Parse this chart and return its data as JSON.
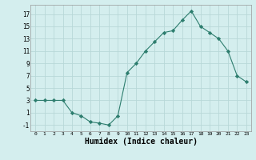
{
  "x": [
    0,
    1,
    2,
    3,
    4,
    5,
    6,
    7,
    8,
    9,
    10,
    11,
    12,
    13,
    14,
    15,
    16,
    17,
    18,
    19,
    20,
    21,
    22,
    23
  ],
  "y": [
    3,
    3,
    3,
    3,
    1,
    0.5,
    -0.5,
    -0.7,
    -1,
    0.5,
    7.5,
    9,
    11,
    12.5,
    14,
    14.3,
    16,
    17.5,
    15,
    14,
    13,
    11,
    7,
    6
  ],
  "line_color": "#2d7d6e",
  "marker": "D",
  "marker_size": 2.2,
  "bg_color": "#d4eeee",
  "grid_color": "#b8d8d8",
  "xlabel": "Humidex (Indice chaleur)",
  "xlabel_fontsize": 7,
  "ytick_labels": [
    "-1",
    "1",
    "3",
    "5",
    "7",
    "9",
    "11",
    "13",
    "15",
    "17"
  ],
  "ytick_values": [
    -1,
    1,
    3,
    5,
    7,
    9,
    11,
    13,
    15,
    17
  ],
  "xtick_values": [
    0,
    1,
    2,
    3,
    4,
    5,
    6,
    7,
    8,
    9,
    10,
    11,
    12,
    13,
    14,
    15,
    16,
    17,
    18,
    19,
    20,
    21,
    22,
    23
  ],
  "ylim": [
    -2,
    18.5
  ],
  "xlim": [
    -0.5,
    23.5
  ]
}
